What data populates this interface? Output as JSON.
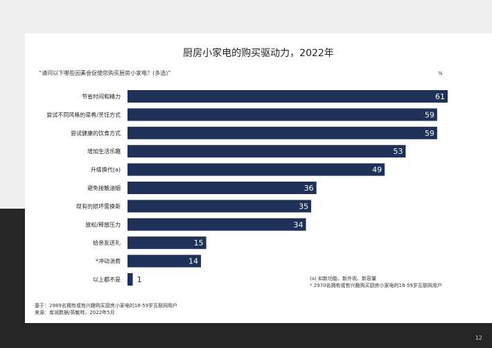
{
  "colors": {
    "bar": "#1f3157",
    "label_in": "#ffffff",
    "label_out": "#222222"
  },
  "page_number": "12",
  "chart_data": {
    "type": "bar",
    "orientation": "horizontal",
    "title": "厨房小家电的购买驱动力，2022年",
    "subtitle": "“请问以下哪些因素会促使您购买厨房小家电？(多选)”",
    "unit": "%",
    "xlim": [
      0,
      61
    ],
    "categories": [
      "节省时间和精力",
      "尝试不同风格的菜肴/烹饪方式",
      "尝试健康的饮食方式",
      "增加生活乐趣",
      "升级换代(a)",
      "避免接触油烟",
      "现有的损坏需换新",
      "放松/释放压力",
      "给亲友送礼",
      "*冲动消费",
      "以上都不是"
    ],
    "values": [
      61,
      59,
      59,
      53,
      49,
      36,
      35,
      34,
      15,
      14,
      1
    ],
    "notes": [
      "(a) 如新功能、新外观、新容量",
      "* 2970名拥有或有兴趣购买厨房小家电的18-59岁互联网用户"
    ],
    "base": [
      "基于：2989名拥有或有兴趣购买厨房小家电的18-59岁互联网用户",
      "来源：库润数据/英敏特，2022年5月"
    ]
  }
}
